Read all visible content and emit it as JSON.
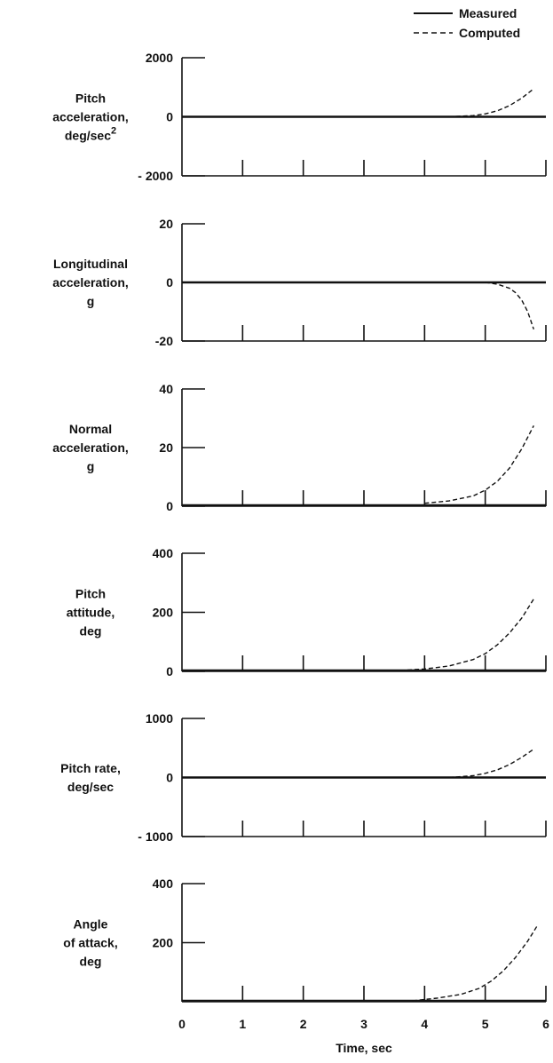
{
  "legend": [
    {
      "label": "Measured",
      "style": "solid"
    },
    {
      "label": "Computed",
      "style": "dashed"
    }
  ],
  "colors": {
    "ink": "#111111",
    "background": "#ffffff"
  },
  "chart_data": [
    {
      "type": "line",
      "ylabel_lines": [
        "Pitch",
        "acceleration,",
        "deg/sec"
      ],
      "ylabel_superscript": "2",
      "ylim": [
        -2000,
        2000
      ],
      "yticks": [
        2000,
        0,
        -2000
      ],
      "ytick_labels": [
        "2000",
        "0",
        "- 2000"
      ],
      "xlim": [
        0,
        6
      ],
      "series": [
        {
          "name": "Measured",
          "x": [
            0,
            6
          ],
          "y": [
            0,
            0
          ]
        },
        {
          "name": "Computed",
          "x": [
            4.4,
            4.8,
            5.0,
            5.2,
            5.4,
            5.6,
            5.8
          ],
          "y": [
            0,
            40,
            100,
            200,
            380,
            630,
            950
          ]
        }
      ]
    },
    {
      "type": "line",
      "ylabel_lines": [
        "Longitudinal",
        "acceleration,",
        "g"
      ],
      "ylim": [
        -20,
        20
      ],
      "yticks": [
        20,
        0,
        -20
      ],
      "ytick_labels": [
        "20",
        "0",
        "-20"
      ],
      "xlim": [
        0,
        6
      ],
      "series": [
        {
          "name": "Measured",
          "x": [
            0,
            6
          ],
          "y": [
            0,
            0
          ]
        },
        {
          "name": "Computed",
          "x": [
            5.0,
            5.2,
            5.4,
            5.5,
            5.6,
            5.7,
            5.8
          ],
          "y": [
            0,
            -0.6,
            -2,
            -3.5,
            -6,
            -10,
            -16
          ]
        }
      ]
    },
    {
      "type": "line",
      "ylabel_lines": [
        "Normal",
        "acceleration,",
        "g"
      ],
      "ylim": [
        0,
        40
      ],
      "yticks": [
        40,
        20,
        0
      ],
      "ytick_labels": [
        "40",
        "20",
        "0"
      ],
      "xlim": [
        0,
        6
      ],
      "series": [
        {
          "name": "Measured",
          "x": [
            0,
            6
          ],
          "y": [
            0.3,
            0.3
          ]
        },
        {
          "name": "Computed",
          "x": [
            4.0,
            4.4,
            4.8,
            5.0,
            5.2,
            5.4,
            5.6,
            5.8
          ],
          "y": [
            1,
            1.8,
            3.5,
            5.5,
            8.5,
            13,
            19.5,
            27.5
          ]
        }
      ]
    },
    {
      "type": "line",
      "ylabel_lines": [
        "Pitch",
        "attitude,",
        "deg"
      ],
      "ylim": [
        0,
        400
      ],
      "yticks": [
        400,
        200,
        0
      ],
      "ytick_labels": [
        "400",
        "200",
        "0"
      ],
      "xlim": [
        0,
        6
      ],
      "series": [
        {
          "name": "Measured",
          "x": [
            0,
            6
          ],
          "y": [
            3,
            3
          ]
        },
        {
          "name": "Computed",
          "x": [
            3.6,
            4.0,
            4.4,
            4.8,
            5.0,
            5.2,
            5.4,
            5.6,
            5.8
          ],
          "y": [
            3,
            8,
            18,
            40,
            60,
            90,
            130,
            180,
            245
          ]
        }
      ]
    },
    {
      "type": "line",
      "ylabel_lines": [
        "Pitch rate,",
        "deg/sec"
      ],
      "ylim": [
        -1000,
        1000
      ],
      "yticks": [
        1000,
        0,
        -1000
      ],
      "ytick_labels": [
        "1000",
        "0",
        "- 1000"
      ],
      "xlim": [
        0,
        6
      ],
      "series": [
        {
          "name": "Measured",
          "x": [
            0,
            6
          ],
          "y": [
            0,
            0
          ]
        },
        {
          "name": "Computed",
          "x": [
            4.4,
            4.8,
            5.0,
            5.2,
            5.4,
            5.6,
            5.8
          ],
          "y": [
            0,
            30,
            70,
            130,
            220,
            340,
            480
          ]
        }
      ]
    },
    {
      "type": "line",
      "ylabel_lines": [
        "Angle",
        "of attack,",
        "deg"
      ],
      "ylim": [
        0,
        400
      ],
      "yticks": [
        400,
        200
      ],
      "ytick_labels": [
        "400",
        "200"
      ],
      "xlim": [
        0,
        6
      ],
      "xticks": [
        0,
        1,
        2,
        3,
        4,
        5,
        6
      ],
      "xtick_labels": [
        "0",
        "1",
        "2",
        "3",
        "4",
        "5",
        "6"
      ],
      "xlabel": "Time, sec",
      "series": [
        {
          "name": "Measured",
          "x": [
            0,
            6
          ],
          "y": [
            3,
            3
          ]
        },
        {
          "name": "Computed",
          "x": [
            3.8,
            4.2,
            4.6,
            4.9,
            5.1,
            5.3,
            5.5,
            5.7,
            5.85
          ],
          "y": [
            3,
            12,
            25,
            45,
            70,
            105,
            150,
            205,
            255
          ]
        }
      ]
    }
  ]
}
